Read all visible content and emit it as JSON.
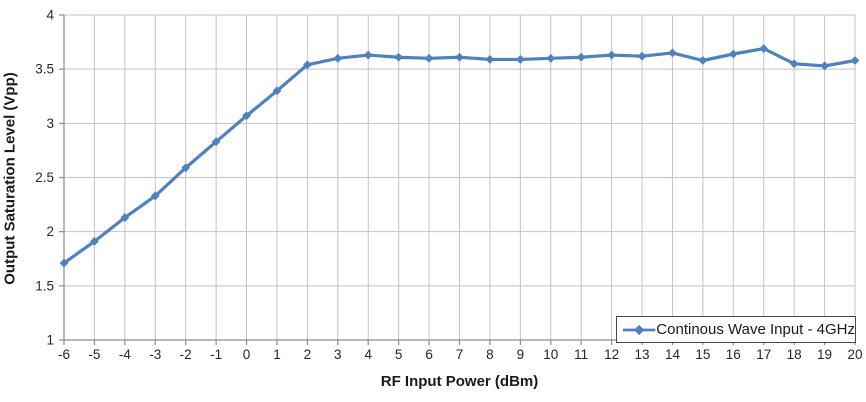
{
  "chart_data": {
    "type": "line",
    "title": "",
    "xlabel": "RF Input Power (dBm)",
    "ylabel": "Output Saturation Level (Vpp)",
    "x": [
      -6,
      -5,
      -4,
      -3,
      -2,
      -1,
      0,
      1,
      2,
      3,
      4,
      5,
      6,
      7,
      8,
      9,
      10,
      11,
      12,
      13,
      14,
      15,
      16,
      17,
      18,
      19,
      20
    ],
    "series": [
      {
        "name": "Continous Wave Input - 4GHz",
        "values": [
          1.71,
          1.91,
          2.13,
          2.33,
          2.59,
          2.83,
          3.07,
          3.3,
          3.54,
          3.6,
          3.63,
          3.61,
          3.6,
          3.61,
          3.59,
          3.59,
          3.6,
          3.61,
          3.63,
          3.62,
          3.65,
          3.58,
          3.64,
          3.69,
          3.55,
          3.53,
          3.58
        ],
        "marker": "diamond",
        "color": "#4F81BD"
      }
    ],
    "xlim": [
      -6,
      20
    ],
    "ylim": [
      1,
      4
    ],
    "x_tick_labels": [
      "-6",
      "-5",
      "-4",
      "-3",
      "-2",
      "-1",
      "0",
      "1",
      "2",
      "3",
      "4",
      "5",
      "6",
      "7",
      "8",
      "9",
      "10",
      "11",
      "12",
      "13",
      "14",
      "15",
      "16",
      "17",
      "18",
      "19",
      "20"
    ],
    "y_ticks": [
      1,
      1.5,
      2,
      2.5,
      3,
      3.5,
      4
    ],
    "y_tick_labels": [
      "1",
      "1.5",
      "2",
      "2.5",
      "3",
      "3.5",
      "4"
    ],
    "grid": true,
    "legend_position": "bottom-right"
  },
  "colors": {
    "series_line": "#4F81BD",
    "gridline": "#C3C3C3",
    "axis_line": "#8C8C8C",
    "tick_text": "#262626",
    "title_text": "#1a1a1a",
    "legend_border": "#4a4a4a",
    "background": "#ffffff"
  }
}
